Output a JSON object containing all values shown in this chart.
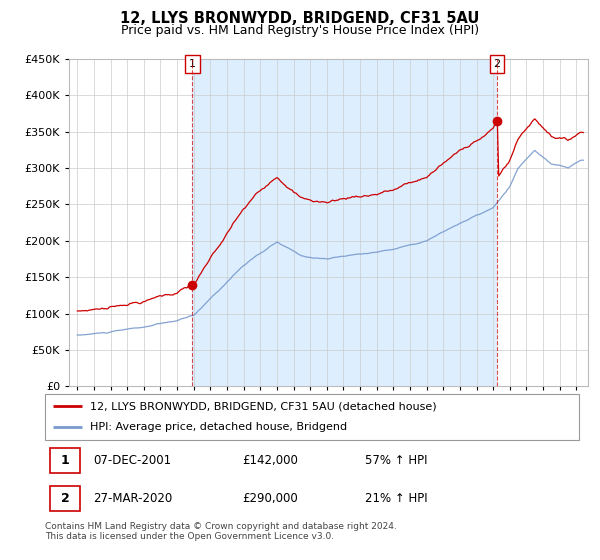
{
  "title": "12, LLYS BRONWYDD, BRIDGEND, CF31 5AU",
  "subtitle": "Price paid vs. HM Land Registry's House Price Index (HPI)",
  "legend_line1": "12, LLYS BRONWYDD, BRIDGEND, CF31 5AU (detached house)",
  "legend_line2": "HPI: Average price, detached house, Bridgend",
  "transaction1_date": "07-DEC-2001",
  "transaction1_price": "£142,000",
  "transaction1_hpi": "57% ↑ HPI",
  "transaction1_year": 2001.92,
  "transaction1_value": 142000,
  "transaction2_date": "27-MAR-2020",
  "transaction2_price": "£290,000",
  "transaction2_hpi": "21% ↑ HPI",
  "transaction2_year": 2020.23,
  "transaction2_value": 290000,
  "footer": "Contains HM Land Registry data © Crown copyright and database right 2024.\nThis data is licensed under the Open Government Licence v3.0.",
  "ylim": [
    0,
    450000
  ],
  "yticks": [
    0,
    50000,
    100000,
    150000,
    200000,
    250000,
    300000,
    350000,
    400000,
    450000
  ],
  "background_color": "#ffffff",
  "grid_color": "#cccccc",
  "line1_color": "#cc0000",
  "line2_color": "#7799cc",
  "fill_color": "#ddeeff",
  "marker_color": "#cc0000",
  "vline_color": "#cc0000"
}
